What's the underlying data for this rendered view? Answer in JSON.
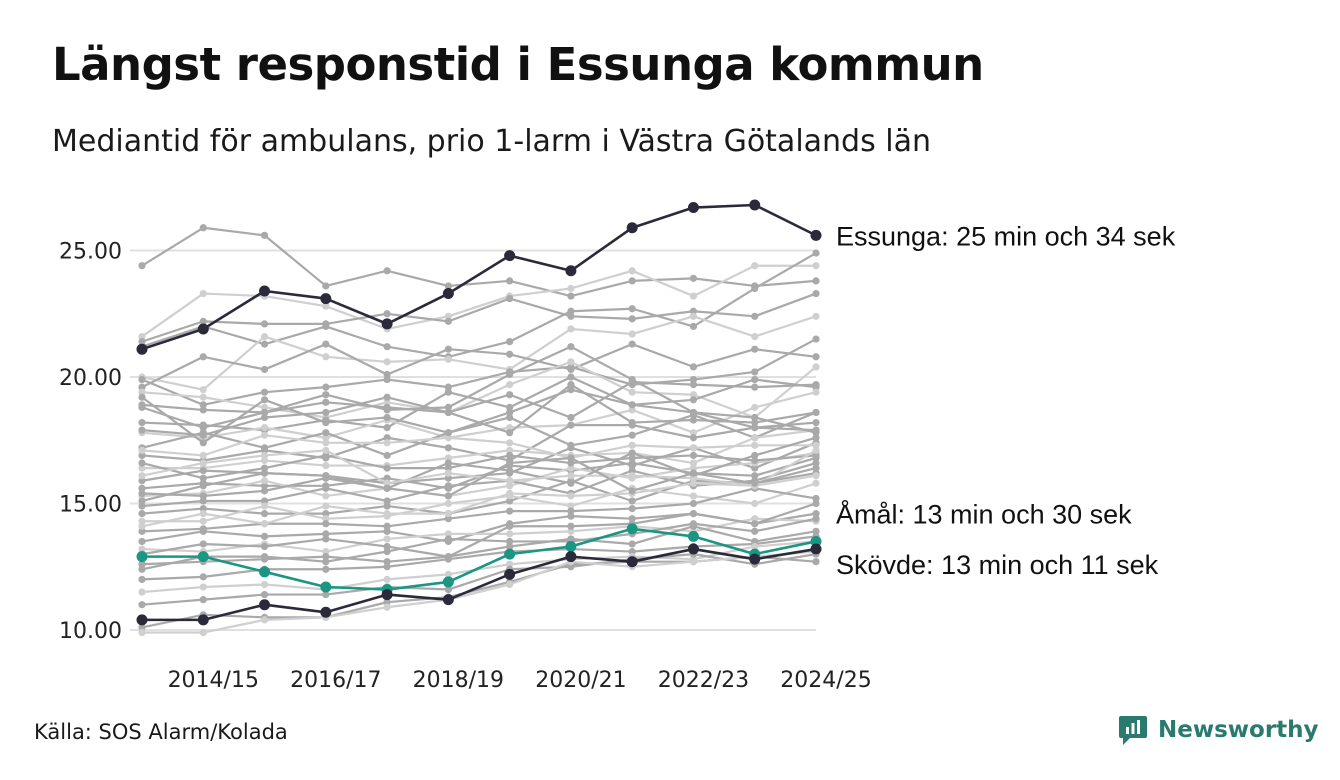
{
  "title": "Längst responstid i Essunga kommun",
  "subtitle": "Mediantid för ambulans, prio 1-larm i Västra Götalands län",
  "source": "Källa: SOS Alarm/Kolada",
  "brand": "Newsworthy",
  "colors": {
    "essunga": "#2a2a3a",
    "skovde": "#2a2a3a",
    "amal": "#1a9683",
    "background_dark": "#a9a9a9",
    "background_light": "#cfcfcf",
    "grid": "#e0e0e0",
    "brand": "#2b7a6f"
  },
  "chart_data": {
    "type": "line",
    "ylim": [
      10,
      26.8
    ],
    "yticks": [
      10,
      15,
      20,
      25
    ],
    "ytick_labels": [
      "10.00",
      "15.00",
      "20.00",
      "25.00"
    ],
    "x": [
      "2013/14",
      "2014/15",
      "2015/16",
      "2016/17",
      "2017/18",
      "2018/19",
      "2019/20",
      "2020/21",
      "2021/22",
      "2022/23",
      "2023/24",
      "2024/25"
    ],
    "xtick_labels": [
      "2014/15",
      "2016/17",
      "2018/19",
      "2020/21",
      "2022/23",
      "2024/25"
    ],
    "highlight_series": [
      {
        "name": "Essunga",
        "label": "Essunga: 25 min och 34 sek",
        "color": "#2a2a3a",
        "values": [
          21.1,
          21.9,
          23.4,
          23.1,
          22.1,
          23.3,
          24.8,
          24.2,
          25.9,
          26.7,
          26.8,
          25.6
        ]
      },
      {
        "name": "Åmål",
        "label": "Åmål: 13 min och 30 sek",
        "color": "#1a9683",
        "values": [
          12.9,
          12.9,
          12.3,
          11.7,
          11.6,
          11.9,
          13.0,
          13.3,
          14.0,
          13.7,
          13.0,
          13.5
        ]
      },
      {
        "name": "Skövde",
        "label": "Skövde: 13 min och 11 sek",
        "color": "#2a2a3a",
        "values": [
          10.4,
          10.4,
          11.0,
          10.7,
          11.4,
          11.2,
          12.2,
          12.9,
          12.7,
          13.2,
          12.8,
          13.2
        ]
      }
    ],
    "background_series": [
      [
        24.4,
        25.9,
        25.6,
        23.6,
        24.2,
        23.6,
        23.8,
        23.2,
        23.8,
        23.9,
        23.6,
        23.8
      ],
      [
        21.6,
        23.3,
        23.2,
        22.8,
        21.9,
        22.4,
        23.2,
        23.5,
        24.2,
        23.2,
        24.4,
        24.4
      ],
      [
        21.4,
        22.2,
        22.1,
        22.1,
        22.5,
        22.2,
        23.1,
        22.4,
        22.3,
        22.6,
        22.4,
        23.3
      ],
      [
        21.2,
        22.0,
        21.3,
        22.0,
        21.2,
        20.8,
        21.4,
        22.6,
        22.7,
        22.0,
        23.5,
        24.9
      ],
      [
        20.0,
        19.5,
        21.6,
        20.8,
        20.6,
        20.7,
        20.3,
        21.9,
        21.7,
        22.4,
        21.6,
        22.4
      ],
      [
        19.6,
        20.8,
        20.3,
        21.3,
        20.1,
        21.1,
        20.9,
        20.3,
        21.3,
        20.4,
        21.1,
        20.8
      ],
      [
        19.9,
        18.9,
        19.4,
        19.6,
        19.9,
        19.6,
        20.2,
        20.4,
        19.7,
        19.9,
        20.2,
        21.5
      ],
      [
        19.4,
        19.2,
        18.8,
        18.4,
        19.0,
        18.6,
        19.7,
        20.6,
        19.4,
        19.3,
        18.4,
        20.4
      ],
      [
        18.8,
        18.0,
        18.6,
        19.0,
        18.8,
        18.6,
        19.3,
        18.4,
        19.8,
        19.7,
        19.6,
        19.7
      ],
      [
        18.2,
        18.1,
        17.9,
        18.3,
        18.0,
        19.4,
        18.8,
        20.0,
        18.9,
        19.1,
        19.9,
        19.6
      ],
      [
        17.8,
        17.6,
        18.0,
        17.6,
        18.3,
        17.6,
        18.0,
        18.1,
        18.7,
        17.8,
        18.8,
        19.4
      ],
      [
        17.2,
        17.8,
        17.2,
        17.8,
        16.9,
        17.8,
        18.4,
        17.3,
        17.7,
        18.5,
        17.6,
        18.6
      ],
      [
        16.9,
        16.7,
        17.1,
        16.8,
        17.6,
        17.2,
        16.7,
        18.1,
        18.1,
        17.6,
        18.0,
        18.2
      ],
      [
        16.4,
        16.4,
        16.7,
        16.5,
        16.5,
        16.8,
        17.1,
        16.9,
        17.0,
        16.6,
        17.6,
        17.9
      ],
      [
        15.9,
        16.3,
        16.2,
        16.1,
        15.8,
        16.0,
        16.2,
        17.2,
        16.5,
        17.2,
        16.4,
        17.4
      ],
      [
        15.6,
        15.8,
        15.7,
        15.7,
        16.0,
        15.6,
        16.5,
        16.3,
        16.6,
        16.2,
        16.1,
        16.8
      ],
      [
        15.3,
        15.4,
        15.9,
        15.3,
        15.6,
        15.3,
        15.7,
        16.4,
        16.0,
        16.4,
        16.6,
        17.0
      ],
      [
        14.9,
        15.1,
        15.1,
        15.6,
        15.1,
        15.7,
        15.9,
        15.4,
        16.3,
        15.7,
        15.9,
        16.6
      ],
      [
        14.6,
        14.8,
        14.6,
        14.6,
        14.9,
        14.6,
        15.1,
        15.9,
        15.1,
        15.9,
        15.8,
        16.2
      ],
      [
        14.3,
        14.3,
        14.9,
        14.4,
        14.5,
        15.0,
        15.3,
        14.9,
        15.6,
        15.3,
        15.0,
        15.8
      ],
      [
        13.9,
        14.0,
        14.2,
        14.2,
        14.1,
        14.4,
        14.7,
        14.7,
        14.8,
        15.0,
        15.6,
        15.2
      ],
      [
        13.5,
        13.9,
        13.7,
        13.8,
        13.9,
        13.5,
        14.2,
        14.5,
        14.4,
        14.6,
        14.2,
        14.6
      ],
      [
        13.2,
        13.1,
        13.4,
        13.1,
        13.6,
        13.8,
        13.8,
        13.9,
        14.1,
        13.9,
        14.4,
        14.3
      ],
      [
        12.6,
        12.7,
        12.8,
        12.9,
        12.7,
        12.9,
        13.3,
        13.6,
        13.4,
        14.1,
        13.5,
        13.9
      ],
      [
        12.0,
        12.1,
        12.4,
        12.4,
        12.5,
        12.8,
        13.1,
        13.2,
        13.1,
        13.3,
        13.4,
        13.7
      ],
      [
        11.5,
        11.7,
        11.8,
        11.6,
        12.0,
        12.2,
        12.6,
        12.8,
        12.9,
        12.8,
        13.3,
        13.5
      ],
      [
        11.0,
        11.2,
        11.4,
        11.4,
        11.7,
        11.6,
        12.4,
        12.5,
        12.8,
        13.0,
        12.6,
        13.0
      ],
      [
        10.1,
        10.6,
        10.5,
        10.5,
        11.1,
        11.3,
        11.9,
        12.6,
        12.7,
        12.7,
        12.9,
        12.7
      ],
      [
        9.9,
        9.9,
        10.4,
        10.5,
        10.9,
        11.2,
        11.8,
        12.7,
        12.5,
        12.7,
        12.9,
        13.1
      ],
      [
        17.9,
        17.7,
        18.4,
        18.6,
        19.2,
        18.6,
        17.8,
        19.7,
        18.2,
        18.3,
        18.2,
        18.6
      ],
      [
        18.9,
        18.7,
        18.6,
        19.3,
        18.7,
        18.8,
        20.1,
        21.2,
        19.9,
        18.6,
        18.4,
        17.8
      ],
      [
        17.1,
        16.9,
        17.7,
        17.4,
        17.4,
        17.6,
        17.4,
        16.8,
        17.3,
        17.2,
        17.3,
        17.3
      ],
      [
        16.6,
        16.0,
        16.4,
        16.9,
        16.4,
        16.4,
        16.9,
        16.6,
        16.8,
        16.9,
        16.7,
        16.9
      ],
      [
        15.4,
        15.3,
        15.5,
        16.0,
        15.6,
        16.6,
        16.3,
        15.8,
        17.0,
        16.1,
        16.9,
        17.6
      ],
      [
        14.1,
        14.6,
        14.2,
        14.9,
        14.6,
        14.6,
        15.4,
        15.3,
        15.4,
        15.8,
        15.7,
        16.1
      ],
      [
        13.0,
        13.4,
        13.3,
        13.6,
        13.3,
        12.9,
        14.1,
        14.1,
        14.2,
        14.6,
        14.2,
        15.0
      ],
      [
        12.4,
        12.9,
        12.9,
        12.7,
        13.1,
        13.6,
        13.5,
        13.5,
        13.8,
        14.2,
        13.9,
        14.4
      ],
      [
        16.1,
        16.6,
        16.9,
        17.1,
        15.8,
        16.2,
        15.9,
        16.1,
        16.1,
        16.0,
        15.7,
        17.1
      ],
      [
        19.2,
        17.4,
        19.1,
        18.2,
        18.4,
        17.8,
        18.6,
        19.5,
        18.9,
        18.6,
        18.0,
        17.9
      ],
      [
        15.1,
        15.7,
        16.2,
        16.1,
        15.6,
        15.3,
        16.6,
        16.8,
        15.5,
        16.2,
        15.8,
        16.4
      ]
    ]
  }
}
